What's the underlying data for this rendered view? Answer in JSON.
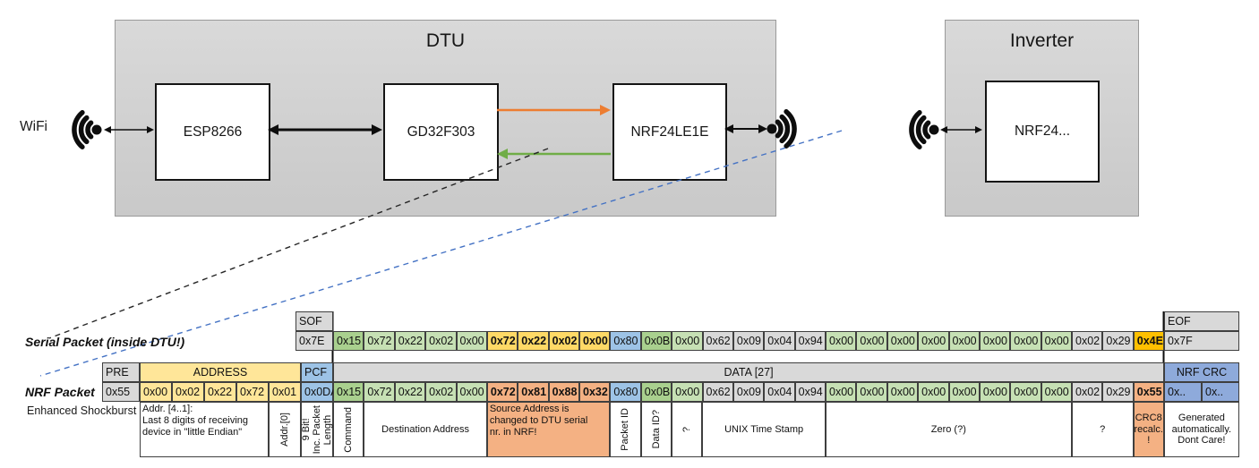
{
  "diagram": {
    "wifi_label": "WiFi",
    "dtu": {
      "title": "DTU",
      "esp": "ESP8266",
      "mcu": "GD32F303",
      "radio": "NRF24LE1E"
    },
    "inverter": {
      "title": "Inverter",
      "radio": "NRF24..."
    },
    "colors": {
      "uart_tx_arrow": "#ED7D31",
      "uart_rx_arrow": "#70AD47",
      "ref_line_blue": "#4472C4"
    }
  },
  "serial_packet": {
    "label": "Serial Packet (inside DTU!)",
    "sof_header": "SOF",
    "sof_value": "0x7E",
    "eof_header": "EOF",
    "eof_value": "0x7F",
    "bytes": [
      {
        "v": "0x15",
        "c": "gd"
      },
      {
        "v": "0x72",
        "c": "g"
      },
      {
        "v": "0x22",
        "c": "g"
      },
      {
        "v": "0x02",
        "c": "g"
      },
      {
        "v": "0x00",
        "c": "g"
      },
      {
        "v": "0x72",
        "c": "gold",
        "b": true
      },
      {
        "v": "0x22",
        "c": "gold",
        "b": true
      },
      {
        "v": "0x02",
        "c": "gold",
        "b": true
      },
      {
        "v": "0x00",
        "c": "gold",
        "b": true
      },
      {
        "v": "0x80",
        "c": "bl"
      },
      {
        "v": "0x0B",
        "c": "gd"
      },
      {
        "v": "0x00",
        "c": "g"
      },
      {
        "v": "0x62",
        "c": "gy"
      },
      {
        "v": "0x09",
        "c": "gy"
      },
      {
        "v": "0x04",
        "c": "gy"
      },
      {
        "v": "0x94",
        "c": "gy"
      },
      {
        "v": "0x00",
        "c": "g"
      },
      {
        "v": "0x00",
        "c": "g"
      },
      {
        "v": "0x00",
        "c": "g"
      },
      {
        "v": "0x00",
        "c": "g"
      },
      {
        "v": "0x00",
        "c": "g"
      },
      {
        "v": "0x00",
        "c": "g"
      },
      {
        "v": "0x00",
        "c": "g"
      },
      {
        "v": "0x00",
        "c": "g"
      },
      {
        "v": "0x02",
        "c": "gy"
      },
      {
        "v": "0x29",
        "c": "gy"
      },
      {
        "v": "0x4E",
        "c": "or",
        "b": true
      }
    ]
  },
  "nrf_packet": {
    "label": "NRF Packet",
    "sublabel": "Enhanced Shockburst",
    "pre_header": "PRE",
    "pre_value": "0x55",
    "address_header": "ADDRESS",
    "address_values": [
      "0x00",
      "0x02",
      "0x22",
      "0x72",
      "0x01"
    ],
    "pcf_header": "PCF",
    "pcf_value": "0x0DA",
    "data_header": "DATA [27]",
    "bytes": [
      {
        "v": "0x15",
        "c": "gd"
      },
      {
        "v": "0x72",
        "c": "g"
      },
      {
        "v": "0x22",
        "c": "g"
      },
      {
        "v": "0x02",
        "c": "g"
      },
      {
        "v": "0x00",
        "c": "g"
      },
      {
        "v": "0x72",
        "c": "sa",
        "b": true
      },
      {
        "v": "0x81",
        "c": "sa",
        "b": true
      },
      {
        "v": "0x88",
        "c": "sa",
        "b": true
      },
      {
        "v": "0x32",
        "c": "sa",
        "b": true
      },
      {
        "v": "0x80",
        "c": "bl"
      },
      {
        "v": "0x0B",
        "c": "gd"
      },
      {
        "v": "0x00",
        "c": "g"
      },
      {
        "v": "0x62",
        "c": "gy"
      },
      {
        "v": "0x09",
        "c": "gy"
      },
      {
        "v": "0x04",
        "c": "gy"
      },
      {
        "v": "0x94",
        "c": "gy"
      },
      {
        "v": "0x00",
        "c": "g"
      },
      {
        "v": "0x00",
        "c": "g"
      },
      {
        "v": "0x00",
        "c": "g"
      },
      {
        "v": "0x00",
        "c": "g"
      },
      {
        "v": "0x00",
        "c": "g"
      },
      {
        "v": "0x00",
        "c": "g"
      },
      {
        "v": "0x00",
        "c": "g"
      },
      {
        "v": "0x00",
        "c": "g"
      },
      {
        "v": "0x02",
        "c": "gy"
      },
      {
        "v": "0x29",
        "c": "gy"
      },
      {
        "v": "0x55",
        "c": "sa",
        "b": true
      }
    ],
    "crc_header": "NRF CRC",
    "crc_values": [
      "0x..",
      "0x.."
    ],
    "annotations": [
      {
        "text": "Addr. [4..1]:\nLast 8 digits of receiving\ndevice in \"little Endian\"",
        "seg": "addr",
        "cols": 4,
        "align": "left"
      },
      {
        "text": "Addr.[0]",
        "seg": "addr",
        "cols": 1,
        "vertical": true
      },
      {
        "text": "9 Bit!\nInc. Packet\nLength",
        "seg": "pcf",
        "cols": 1,
        "vertical": true
      },
      {
        "text": "Command",
        "seg": "data",
        "cols": 1,
        "vertical": true
      },
      {
        "text": "Destination Address",
        "seg": "data",
        "cols": 4
      },
      {
        "text": "Source Address is\nchanged to DTU serial\nnr. in NRF!",
        "seg": "data",
        "cols": 4,
        "bg": "salmon",
        "align": "left"
      },
      {
        "text": "Packet ID",
        "seg": "data",
        "cols": 1,
        "vertical": true
      },
      {
        "text": "Data ID?",
        "seg": "data",
        "cols": 1,
        "vertical": true
      },
      {
        "text": "?",
        "seg": "data",
        "cols": 1,
        "vertical": true
      },
      {
        "text": "UNIX Time Stamp",
        "seg": "data",
        "cols": 4
      },
      {
        "text": "Zero (?)",
        "seg": "data",
        "cols": 8
      },
      {
        "text": "?",
        "seg": "data",
        "cols": 2
      },
      {
        "text": "CRC8\nrecalc.\n!",
        "seg": "data",
        "cols": 1,
        "bg": "salmon"
      },
      {
        "text": "Generated\nautomatically.\nDont Care!",
        "seg": "crc",
        "cols": 2
      }
    ]
  }
}
